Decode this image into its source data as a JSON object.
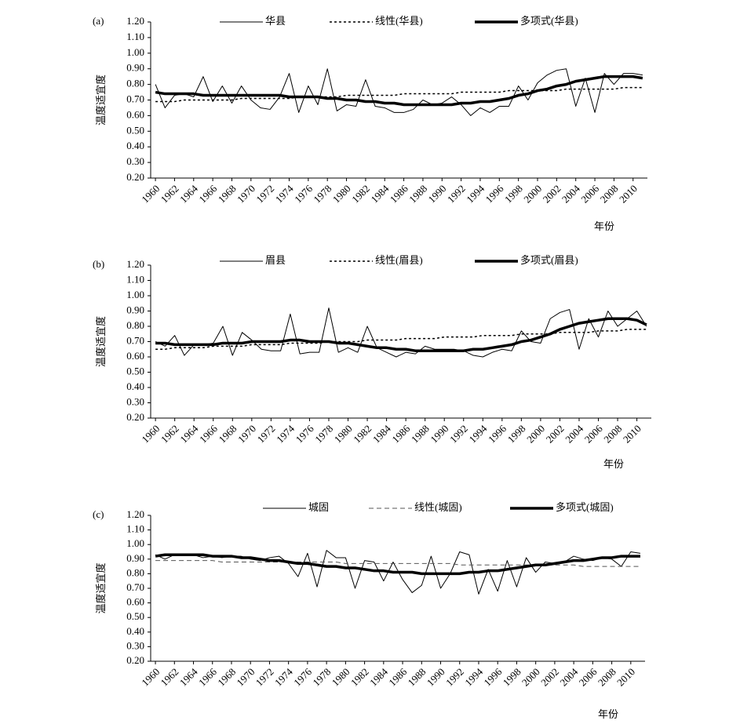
{
  "chart_data": [
    {
      "type": "line",
      "panel_label": "(a)",
      "y_label": "温度适宜度",
      "x_label": "年份",
      "categories": [
        "1960",
        null,
        "1962",
        null,
        "1964",
        null,
        "1966",
        null,
        "1968",
        null,
        "1970",
        null,
        "1972",
        null,
        "1974",
        null,
        "1976",
        null,
        "1978",
        null,
        "1980",
        null,
        "1982",
        null,
        "1984",
        null,
        "1986",
        null,
        "1988",
        null,
        "1990",
        null,
        "1992",
        null,
        "1994",
        null,
        "1996",
        null,
        "1998",
        null,
        "2000",
        null,
        "2002",
        null,
        "2004",
        null,
        "2006",
        null,
        "2008",
        null,
        "2010",
        null
      ],
      "ylim": [
        0.2,
        1.2
      ],
      "yticks": [
        {
          "value": 0.2,
          "label": "0.20"
        },
        {
          "value": 0.3,
          "label": "0.30"
        },
        {
          "value": 0.4,
          "label": "0.40"
        },
        {
          "value": 0.5,
          "label": "0.50"
        },
        {
          "value": 0.6,
          "label": "0.60"
        },
        {
          "value": 0.7,
          "label": "0.70"
        },
        {
          "value": 0.8,
          "label": "0.80"
        },
        {
          "value": 0.9,
          "label": "0.90"
        },
        {
          "value": 1.0,
          "label": "1.00"
        },
        {
          "value": 1.1,
          "label": "1.10"
        },
        {
          "value": 1.2,
          "label": "1.20"
        }
      ],
      "series": [
        {
          "name": "华县",
          "color": "#000000",
          "line_style": "solid",
          "line_width": 1,
          "values": [
            0.8,
            0.65,
            0.73,
            0.74,
            0.72,
            0.85,
            0.69,
            0.79,
            0.68,
            0.79,
            0.7,
            0.65,
            0.64,
            0.72,
            0.87,
            0.62,
            0.79,
            0.67,
            0.9,
            0.63,
            0.67,
            0.66,
            0.83,
            0.66,
            0.65,
            0.62,
            0.62,
            0.64,
            0.7,
            0.67,
            0.68,
            0.72,
            0.67,
            0.6,
            0.65,
            0.62,
            0.66,
            0.66,
            0.79,
            0.7,
            0.81,
            0.86,
            0.89,
            0.9,
            0.66,
            0.84,
            0.62,
            0.87,
            0.8,
            0.87,
            0.87,
            0.86
          ]
        },
        {
          "name": "线性(华县)",
          "color": "#000000",
          "line_style": "dotted",
          "line_width": 1.5,
          "values": [
            0.69,
            0.69,
            0.69,
            0.7,
            0.7,
            0.7,
            0.7,
            0.7,
            0.7,
            0.71,
            0.71,
            0.71,
            0.71,
            0.71,
            0.71,
            0.72,
            0.72,
            0.72,
            0.72,
            0.72,
            0.73,
            0.73,
            0.73,
            0.73,
            0.73,
            0.73,
            0.74,
            0.74,
            0.74,
            0.74,
            0.74,
            0.74,
            0.75,
            0.75,
            0.75,
            0.75,
            0.75,
            0.76,
            0.76,
            0.76,
            0.76,
            0.76,
            0.76,
            0.77,
            0.77,
            0.77,
            0.77,
            0.77,
            0.77,
            0.78,
            0.78,
            0.78
          ]
        },
        {
          "name": "多项式(华县)",
          "color": "#000000",
          "line_style": "solid",
          "line_width": 3.5,
          "values": [
            0.75,
            0.74,
            0.74,
            0.74,
            0.74,
            0.73,
            0.73,
            0.73,
            0.73,
            0.73,
            0.73,
            0.73,
            0.73,
            0.73,
            0.72,
            0.72,
            0.72,
            0.72,
            0.71,
            0.71,
            0.7,
            0.7,
            0.69,
            0.69,
            0.68,
            0.68,
            0.67,
            0.67,
            0.67,
            0.67,
            0.67,
            0.67,
            0.68,
            0.68,
            0.69,
            0.69,
            0.7,
            0.71,
            0.73,
            0.74,
            0.76,
            0.77,
            0.79,
            0.8,
            0.82,
            0.83,
            0.84,
            0.85,
            0.85,
            0.85,
            0.85,
            0.84
          ]
        }
      ]
    },
    {
      "type": "line",
      "panel_label": "(b)",
      "y_label": "温度适宜度",
      "x_label": "年份",
      "categories": [
        "1960",
        null,
        "1962",
        null,
        "1964",
        null,
        "1966",
        null,
        "1968",
        null,
        "1970",
        null,
        "1972",
        null,
        "1974",
        null,
        "1976",
        null,
        "1978",
        null,
        "1980",
        null,
        "1982",
        null,
        "1984",
        null,
        "1986",
        null,
        "1988",
        null,
        "1990",
        null,
        "1992",
        null,
        "1994",
        null,
        "1996",
        null,
        "1998",
        null,
        "2000",
        null,
        "2002",
        null,
        "2004",
        null,
        "2006",
        null,
        "2008",
        null,
        "2010",
        null
      ],
      "ylim": [
        0.2,
        1.2
      ],
      "yticks": [
        {
          "value": 0.2,
          "label": "0.20"
        },
        {
          "value": 0.3,
          "label": "0.30"
        },
        {
          "value": 0.4,
          "label": "0.40"
        },
        {
          "value": 0.5,
          "label": "0.50"
        },
        {
          "value": 0.6,
          "label": "0.60"
        },
        {
          "value": 0.7,
          "label": "0.70"
        },
        {
          "value": 0.8,
          "label": "0.80"
        },
        {
          "value": 0.9,
          "label": "0.90"
        },
        {
          "value": 1.0,
          "label": "1.00"
        },
        {
          "value": 1.1,
          "label": "1.10"
        },
        {
          "value": 1.2,
          "label": "1.20"
        }
      ],
      "series": [
        {
          "name": "眉县",
          "color": "#000000",
          "line_style": "solid",
          "line_width": 1,
          "values": [
            0.7,
            0.67,
            0.74,
            0.61,
            0.68,
            0.68,
            0.69,
            0.8,
            0.61,
            0.76,
            0.71,
            0.65,
            0.64,
            0.64,
            0.88,
            0.62,
            0.63,
            0.63,
            0.92,
            0.63,
            0.66,
            0.63,
            0.8,
            0.66,
            0.63,
            0.6,
            0.63,
            0.62,
            0.67,
            0.65,
            0.65,
            0.65,
            0.64,
            0.61,
            0.6,
            0.63,
            0.65,
            0.64,
            0.77,
            0.7,
            0.69,
            0.85,
            0.89,
            0.91,
            0.65,
            0.85,
            0.73,
            0.9,
            0.8,
            0.85,
            0.9,
            0.8
          ]
        },
        {
          "name": "线性(眉县)",
          "color": "#000000",
          "line_style": "dotted",
          "line_width": 1.5,
          "values": [
            0.65,
            0.65,
            0.66,
            0.66,
            0.66,
            0.66,
            0.67,
            0.67,
            0.67,
            0.67,
            0.68,
            0.68,
            0.68,
            0.68,
            0.69,
            0.69,
            0.69,
            0.69,
            0.7,
            0.7,
            0.7,
            0.7,
            0.71,
            0.71,
            0.71,
            0.71,
            0.72,
            0.72,
            0.72,
            0.72,
            0.73,
            0.73,
            0.73,
            0.73,
            0.74,
            0.74,
            0.74,
            0.74,
            0.75,
            0.75,
            0.75,
            0.75,
            0.76,
            0.76,
            0.76,
            0.76,
            0.77,
            0.77,
            0.77,
            0.78,
            0.78,
            0.78
          ]
        },
        {
          "name": "多项式(眉县)",
          "color": "#000000",
          "line_style": "solid",
          "line_width": 3.5,
          "values": [
            0.69,
            0.69,
            0.68,
            0.68,
            0.68,
            0.68,
            0.68,
            0.69,
            0.69,
            0.69,
            0.7,
            0.7,
            0.7,
            0.7,
            0.71,
            0.71,
            0.7,
            0.7,
            0.7,
            0.69,
            0.69,
            0.68,
            0.67,
            0.66,
            0.66,
            0.65,
            0.65,
            0.64,
            0.64,
            0.64,
            0.64,
            0.64,
            0.64,
            0.65,
            0.65,
            0.66,
            0.67,
            0.68,
            0.7,
            0.71,
            0.73,
            0.75,
            0.78,
            0.8,
            0.82,
            0.83,
            0.84,
            0.85,
            0.85,
            0.85,
            0.84,
            0.81
          ]
        }
      ]
    },
    {
      "type": "line",
      "panel_label": "(c)",
      "y_label": "温度适宜度",
      "x_label": "年份",
      "categories": [
        "1960",
        null,
        "1962",
        null,
        "1964",
        null,
        "1966",
        null,
        "1968",
        null,
        "1970",
        null,
        "1972",
        null,
        "1974",
        null,
        "1976",
        null,
        "1978",
        null,
        "1980",
        null,
        "1982",
        null,
        "1984",
        null,
        "1986",
        null,
        "1988",
        null,
        "1990",
        null,
        "1992",
        null,
        "1994",
        null,
        "1996",
        null,
        "1998",
        null,
        "2000",
        null,
        "2002",
        null,
        "2004",
        null,
        "2006",
        null,
        "2008",
        null,
        "2010",
        null
      ],
      "ylim": [
        0.2,
        1.2
      ],
      "yticks": [
        {
          "value": 0.2,
          "label": "0.20"
        },
        {
          "value": 0.3,
          "label": "0.30"
        },
        {
          "value": 0.4,
          "label": "0.40"
        },
        {
          "value": 0.5,
          "label": "0.50"
        },
        {
          "value": 0.6,
          "label": "0.60"
        },
        {
          "value": 0.7,
          "label": "0.70"
        },
        {
          "value": 0.8,
          "label": "0.80"
        },
        {
          "value": 0.9,
          "label": "0.90"
        },
        {
          "value": 1.0,
          "label": "1.00"
        },
        {
          "value": 1.1,
          "label": "1.10"
        },
        {
          "value": 1.2,
          "label": "1.20"
        }
      ],
      "series": [
        {
          "name": "城固",
          "color": "#000000",
          "line_style": "solid",
          "line_width": 1,
          "values": [
            0.93,
            0.9,
            0.93,
            0.93,
            0.93,
            0.91,
            0.92,
            0.91,
            0.92,
            0.92,
            0.9,
            0.89,
            0.91,
            0.92,
            0.87,
            0.78,
            0.94,
            0.71,
            0.96,
            0.91,
            0.91,
            0.7,
            0.89,
            0.88,
            0.75,
            0.88,
            0.76,
            0.67,
            0.72,
            0.92,
            0.7,
            0.8,
            0.95,
            0.93,
            0.66,
            0.83,
            0.68,
            0.89,
            0.71,
            0.91,
            0.81,
            0.88,
            0.87,
            0.88,
            0.92,
            0.9,
            0.89,
            0.91,
            0.9,
            0.85,
            0.95,
            0.94
          ]
        },
        {
          "name": "线性(城固)",
          "color": "#555555",
          "line_style": "dashed",
          "line_width": 1,
          "values": [
            0.89,
            0.89,
            0.89,
            0.89,
            0.89,
            0.89,
            0.89,
            0.88,
            0.88,
            0.88,
            0.88,
            0.88,
            0.88,
            0.88,
            0.88,
            0.88,
            0.88,
            0.88,
            0.88,
            0.88,
            0.87,
            0.87,
            0.87,
            0.87,
            0.87,
            0.87,
            0.87,
            0.87,
            0.87,
            0.87,
            0.87,
            0.87,
            0.86,
            0.86,
            0.86,
            0.86,
            0.86,
            0.86,
            0.86,
            0.86,
            0.86,
            0.86,
            0.86,
            0.86,
            0.86,
            0.85,
            0.85,
            0.85,
            0.85,
            0.85,
            0.85,
            0.85
          ]
        },
        {
          "name": "多项式(城固)",
          "color": "#000000",
          "line_style": "solid",
          "line_width": 3.5,
          "values": [
            0.92,
            0.93,
            0.93,
            0.93,
            0.93,
            0.93,
            0.92,
            0.92,
            0.92,
            0.91,
            0.91,
            0.9,
            0.89,
            0.89,
            0.88,
            0.87,
            0.87,
            0.86,
            0.85,
            0.85,
            0.84,
            0.84,
            0.83,
            0.82,
            0.82,
            0.81,
            0.81,
            0.81,
            0.8,
            0.8,
            0.8,
            0.8,
            0.8,
            0.81,
            0.81,
            0.82,
            0.82,
            0.83,
            0.84,
            0.85,
            0.86,
            0.86,
            0.87,
            0.88,
            0.89,
            0.89,
            0.9,
            0.91,
            0.91,
            0.92,
            0.92,
            0.92
          ]
        }
      ]
    }
  ]
}
